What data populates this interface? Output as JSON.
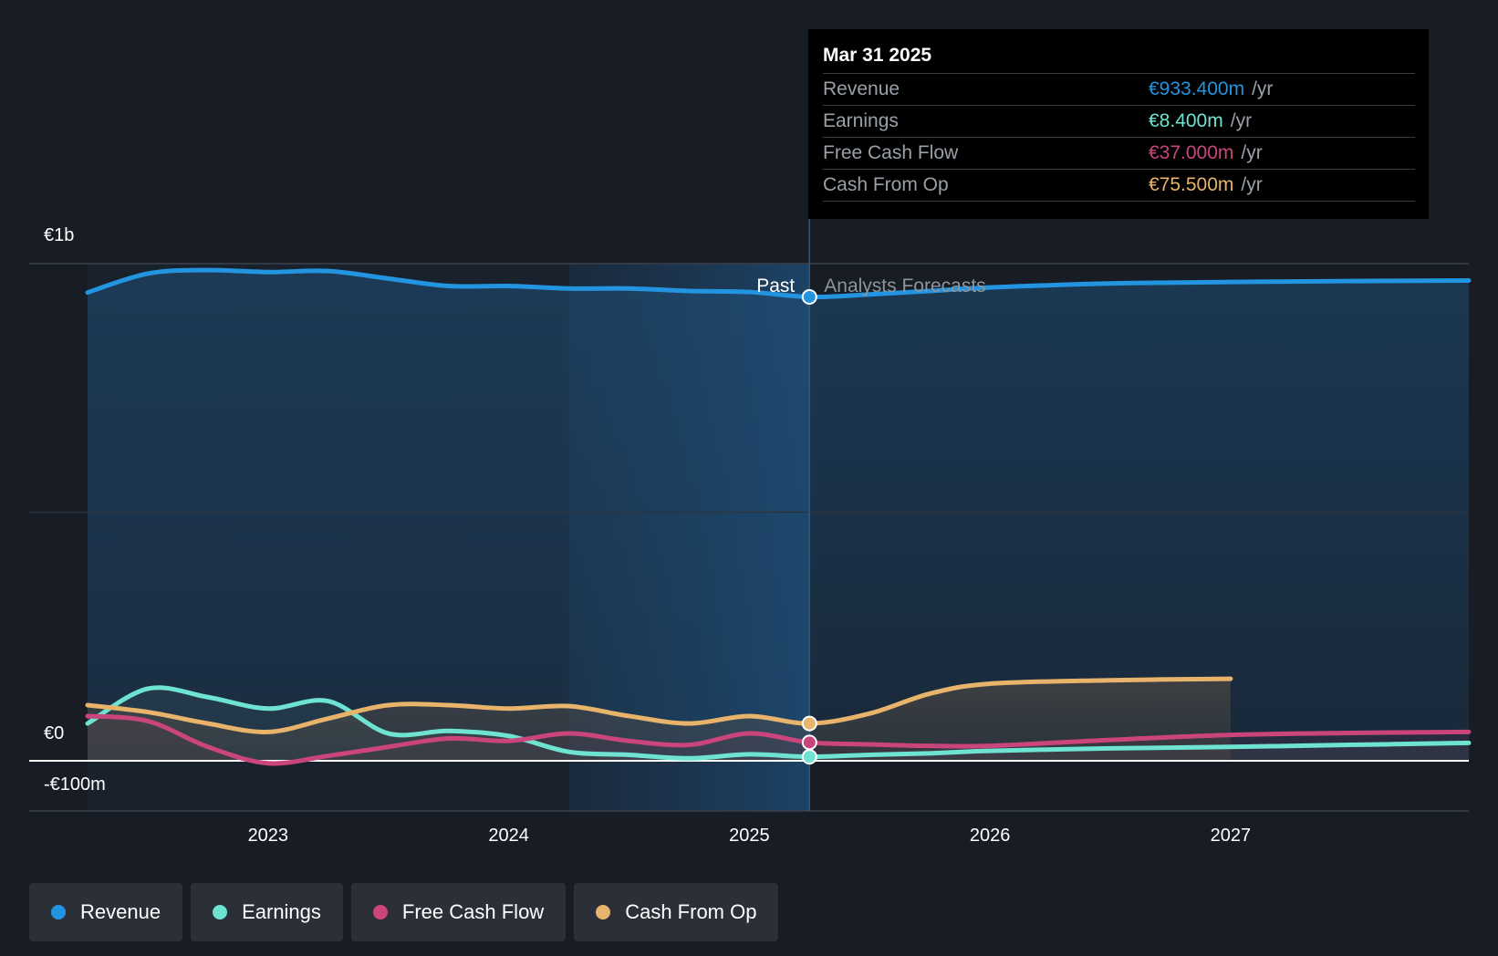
{
  "tooltip": {
    "date": "Mar 31 2025",
    "rows": [
      {
        "label": "Revenue",
        "value": "€933.400m",
        "unit": "/yr",
        "color": "#2394df"
      },
      {
        "label": "Earnings",
        "value": "€8.400m",
        "unit": "/yr",
        "color": "#6fe3d1"
      },
      {
        "label": "Free Cash Flow",
        "value": "€37.000m",
        "unit": "/yr",
        "color": "#c9457b"
      },
      {
        "label": "Cash From Op",
        "value": "€75.500m",
        "unit": "/yr",
        "color": "#e8b36a"
      }
    ]
  },
  "labels": {
    "past": "Past",
    "forecast": "Analysts Forecasts"
  },
  "legend": [
    {
      "label": "Revenue",
      "color": "#2394df"
    },
    {
      "label": "Earnings",
      "color": "#6fe3d1"
    },
    {
      "label": "Free Cash Flow",
      "color": "#c9457b"
    },
    {
      "label": "Cash From Op",
      "color": "#e8b36a"
    }
  ],
  "chart_data": {
    "type": "line",
    "y_tick_labels": [
      "€1b",
      "€0",
      "-€100m"
    ],
    "x_tick_labels": [
      "2023",
      "2024",
      "2025",
      "2026",
      "2027"
    ],
    "ylim": [
      -100,
      1000
    ],
    "xlim": [
      2022.25,
      2027.99
    ],
    "divider_x": 2025.25,
    "series": [
      {
        "name": "Revenue",
        "color": "#2394df",
        "x": [
          2022.25,
          2022.5,
          2022.75,
          2023.0,
          2023.25,
          2023.5,
          2023.75,
          2024.0,
          2024.25,
          2024.5,
          2024.75,
          2025.0,
          2025.25,
          2025.5,
          2025.75,
          2026.0,
          2026.5,
          2027.0,
          2027.5,
          2027.99
        ],
        "values": [
          942,
          980,
          987,
          983,
          985,
          970,
          955,
          955,
          950,
          950,
          945,
          943,
          933,
          938,
          945,
          952,
          960,
          963,
          965,
          966
        ]
      },
      {
        "name": "Earnings",
        "color": "#6fe3d1",
        "x": [
          2022.25,
          2022.5,
          2022.75,
          2023.0,
          2023.25,
          2023.5,
          2023.75,
          2024.0,
          2024.25,
          2024.5,
          2024.75,
          2025.0,
          2025.25,
          2025.5,
          2025.75,
          2026.0,
          2026.5,
          2027.0,
          2027.5,
          2027.99
        ],
        "values": [
          75,
          145,
          128,
          105,
          120,
          55,
          60,
          50,
          18,
          12,
          5,
          13,
          8,
          12,
          15,
          20,
          25,
          28,
          32,
          36
        ]
      },
      {
        "name": "Free Cash Flow",
        "color": "#c9457b",
        "x": [
          2022.25,
          2022.5,
          2022.75,
          2023.0,
          2023.25,
          2023.5,
          2023.75,
          2024.0,
          2024.25,
          2024.5,
          2024.75,
          2025.0,
          2025.25,
          2025.5,
          2025.75,
          2026.0,
          2026.5,
          2027.0,
          2027.5,
          2027.99
        ],
        "values": [
          90,
          80,
          28,
          -5,
          10,
          28,
          45,
          40,
          55,
          40,
          32,
          55,
          37,
          33,
          30,
          30,
          42,
          52,
          56,
          58
        ]
      },
      {
        "name": "Cash From Op",
        "color": "#e8b36a",
        "x": [
          2022.25,
          2022.5,
          2022.75,
          2023.0,
          2023.25,
          2023.5,
          2023.75,
          2024.0,
          2024.25,
          2024.5,
          2024.75,
          2025.0,
          2025.25,
          2025.5,
          2025.75,
          2026.0,
          2026.5,
          2027.0
        ],
        "values": [
          112,
          98,
          75,
          58,
          85,
          112,
          112,
          105,
          110,
          90,
          75,
          90,
          75,
          95,
          135,
          155,
          162,
          165
        ]
      }
    ]
  }
}
